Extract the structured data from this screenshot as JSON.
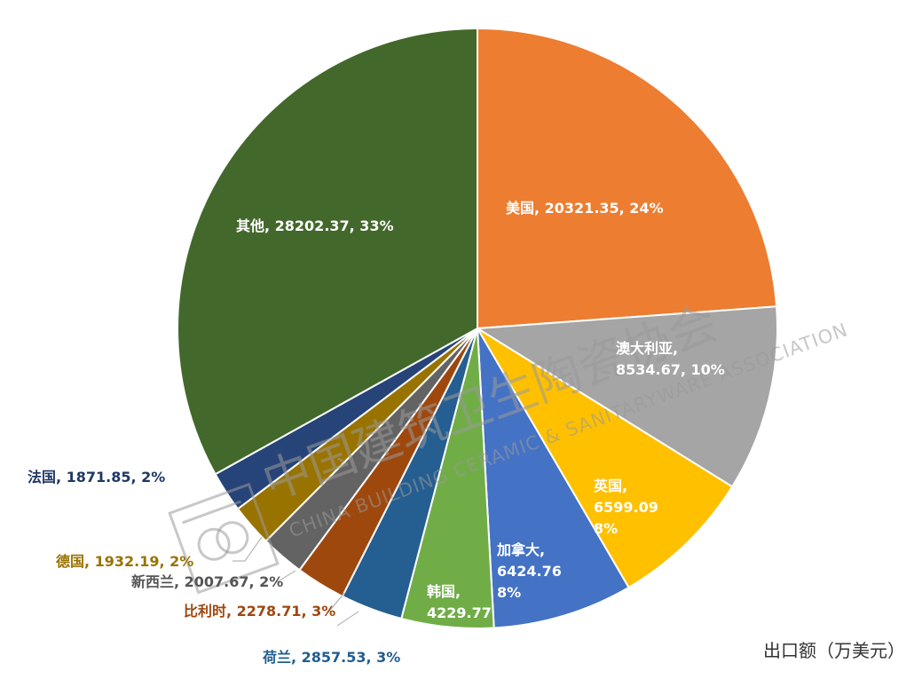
{
  "chart_data": {
    "type": "pie",
    "slices": [
      {
        "name": "美国",
        "value": 20321.35,
        "percent": "24%",
        "color": "#ED7D31",
        "label_lines": [
          "美国, 20321.35, 24%"
        ]
      },
      {
        "name": "澳大利亚",
        "value": 8534.67,
        "percent": "10%",
        "color": "#A5A5A5",
        "label_lines": [
          "澳大利亚,",
          "8534.67, 10%"
        ]
      },
      {
        "name": "英国",
        "value": 6599.09,
        "percent": "8%",
        "color": "#FFC000",
        "label_lines": [
          "英国,",
          "6599.09",
          "8%"
        ]
      },
      {
        "name": "加拿大",
        "value": 6424.76,
        "percent": "8%",
        "color": "#4472C4",
        "label_lines": [
          "加拿大,",
          "6424.76",
          "8%"
        ]
      },
      {
        "name": "韩国",
        "value": 4229.77,
        "percent": "",
        "color": "#70AD47",
        "label_lines": [
          "韩国,",
          "4229.77"
        ]
      },
      {
        "name": "荷兰",
        "value": 2857.53,
        "percent": "3%",
        "color": "#255E91",
        "label_lines": [
          "荷兰, 2857.53, 3%"
        ]
      },
      {
        "name": "比利时",
        "value": 2278.71,
        "percent": "3%",
        "color": "#9E480E",
        "label_lines": [
          "比利时, 2278.71, 3%"
        ]
      },
      {
        "name": "新西兰",
        "value": 2007.67,
        "percent": "2%",
        "color": "#636363",
        "label_lines": [
          "新西兰, 2007.67, 2%"
        ]
      },
      {
        "name": "德国",
        "value": 1932.19,
        "percent": "2%",
        "color": "#997300",
        "label_lines": [
          "德国, 1932.19, 2%"
        ]
      },
      {
        "name": "法国",
        "value": 1871.85,
        "percent": "2%",
        "color": "#264478",
        "label_lines": [
          "法国, 1871.85, 2%"
        ]
      },
      {
        "name": "其他",
        "value": 28202.37,
        "percent": "33%",
        "color": "#43682B",
        "label_lines": [
          "其他, 28202.37, 33%"
        ]
      }
    ],
    "unit_label": "出口额（万美元）",
    "start": "12 o'clock",
    "direction": "clockwise"
  },
  "watermark": {
    "cn": "中国建筑卫生陶瓷协会",
    "en": "CHINA BUILDING CERAMIC & SANITARYWARE ASSOCIATION"
  }
}
